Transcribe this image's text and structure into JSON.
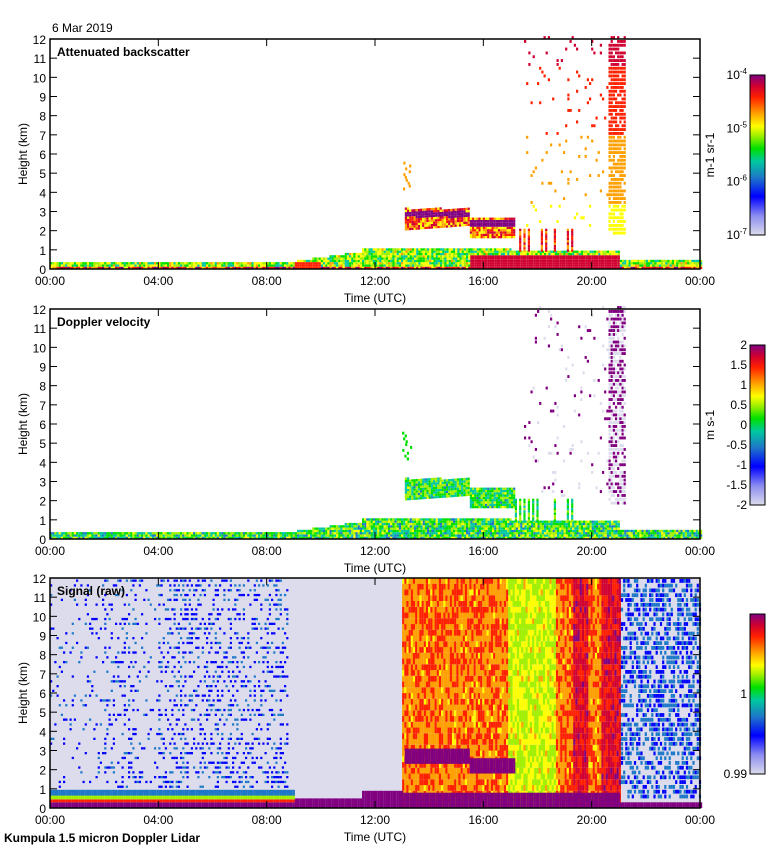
{
  "date_label": "6 Mar 2019",
  "footer_label": "Kumpula 1.5 micron Doppler Lidar",
  "chart_data": [
    {
      "type": "heatmap",
      "title": "Attenuated backscatter",
      "xlabel": "Time (UTC)",
      "ylabel": "Height (km)",
      "xlim": [
        0,
        24
      ],
      "ylim": [
        0,
        12
      ],
      "x_ticks": [
        "00:00",
        "04:00",
        "08:00",
        "12:00",
        "16:00",
        "20:00",
        "00:00"
      ],
      "y_ticks": [
        "0",
        "1",
        "2",
        "3",
        "4",
        "5",
        "6",
        "7",
        "8",
        "9",
        "10",
        "11",
        "12"
      ],
      "colorbar": {
        "label": "m-1 sr-1",
        "scale": "log",
        "range": [
          1e-07,
          0.0001
        ],
        "ticks": [
          {
            "base": "10",
            "exp": "-4",
            "value": 0.0001
          },
          {
            "base": "10",
            "exp": "-5",
            "value": 1e-05
          },
          {
            "base": "10",
            "exp": "-6",
            "value": 1e-06
          },
          {
            "base": "10",
            "exp": "-7",
            "value": 1e-07
          }
        ]
      },
      "features": [
        {
          "name": "boundary layer",
          "t_start": 0,
          "t_end": 24,
          "h_top": 0.4,
          "level": 0.3
        },
        {
          "name": "growing mixed layer",
          "t_start": 9,
          "t_end": 13,
          "h_top": 1.2,
          "level": 0.45
        },
        {
          "name": "mid-level cloud",
          "t_start": 13.1,
          "t_end": 15.8,
          "h_top": 3.1,
          "level": 0.95
        },
        {
          "name": "descending cloud",
          "t_start": 15.5,
          "t_end": 17.1,
          "h_top": 2.6,
          "level": 0.92
        },
        {
          "name": "precipitation streaks",
          "t_start": 17,
          "t_end": 22,
          "h_top": 12,
          "level": 0.75
        },
        {
          "name": "high cloud column",
          "t_start": 20.6,
          "t_end": 21.2,
          "h_top": 12,
          "level": 0.7
        }
      ]
    },
    {
      "type": "heatmap",
      "title": "Doppler velocity",
      "xlabel": "Time (UTC)",
      "ylabel": "Height (km)",
      "xlim": [
        0,
        24
      ],
      "ylim": [
        0,
        12
      ],
      "x_ticks": [
        "00:00",
        "04:00",
        "08:00",
        "12:00",
        "16:00",
        "20:00",
        "00:00"
      ],
      "y_ticks": [
        "0",
        "1",
        "2",
        "3",
        "4",
        "5",
        "6",
        "7",
        "8",
        "9",
        "10",
        "11",
        "12"
      ],
      "colorbar": {
        "label": "m s-1",
        "scale": "linear",
        "range": [
          -2,
          2
        ],
        "ticks": [
          {
            "label": "2",
            "value": 2
          },
          {
            "label": "1.5",
            "value": 1.5
          },
          {
            "label": "1",
            "value": 1
          },
          {
            "label": "0.5",
            "value": 0.5
          },
          {
            "label": "0",
            "value": 0
          },
          {
            "label": "-0.5",
            "value": -0.5
          },
          {
            "label": "-1",
            "value": -1
          },
          {
            "label": "-1.5",
            "value": -1.5
          },
          {
            "label": "-2",
            "value": -2
          }
        ]
      }
    },
    {
      "type": "heatmap",
      "title": "Signal (raw)",
      "xlabel": "Time (UTC)",
      "ylabel": "Height (km)",
      "xlim": [
        0,
        24
      ],
      "ylim": [
        0,
        12
      ],
      "x_ticks": [
        "00:00",
        "04:00",
        "08:00",
        "12:00",
        "16:00",
        "20:00",
        "00:00"
      ],
      "y_ticks": [
        "0",
        "1",
        "2",
        "3",
        "4",
        "5",
        "6",
        "7",
        "8",
        "9",
        "10",
        "11",
        "12"
      ],
      "colorbar": {
        "label": "",
        "scale": "linear",
        "range": [
          0.99,
          1.01
        ],
        "ticks": [
          {
            "label": "1",
            "value": 1
          },
          {
            "label": "0.99",
            "value": 0.99
          }
        ]
      }
    }
  ]
}
